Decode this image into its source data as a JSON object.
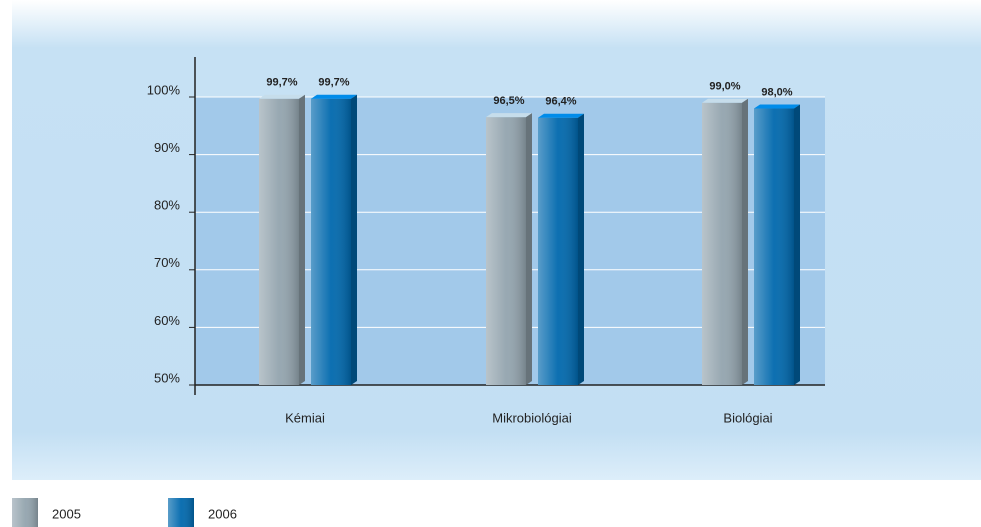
{
  "chart_data": {
    "type": "bar3d",
    "categories": [
      "Kémiai",
      "Mikrobiológiai",
      "Biológiai"
    ],
    "series": [
      {
        "name": "2005",
        "color": "#93a4ae",
        "values": [
          99.7,
          96.5,
          99.0
        ],
        "value_labels": [
          "99,7%",
          "96,5%",
          "99,0%"
        ]
      },
      {
        "name": "2006",
        "color": "#0068ad",
        "values": [
          99.7,
          96.4,
          98.0
        ],
        "value_labels": [
          "99,7%",
          "96,4%",
          "98,0%"
        ]
      }
    ],
    "ylim": [
      50,
      100
    ],
    "yticks": [
      {
        "value": 50,
        "label": "50%"
      },
      {
        "value": 60,
        "label": "60%"
      },
      {
        "value": 70,
        "label": "70%"
      },
      {
        "value": 80,
        "label": "80%"
      },
      {
        "value": 90,
        "label": "90%"
      },
      {
        "value": 100,
        "label": "100%"
      }
    ],
    "grid": true
  }
}
